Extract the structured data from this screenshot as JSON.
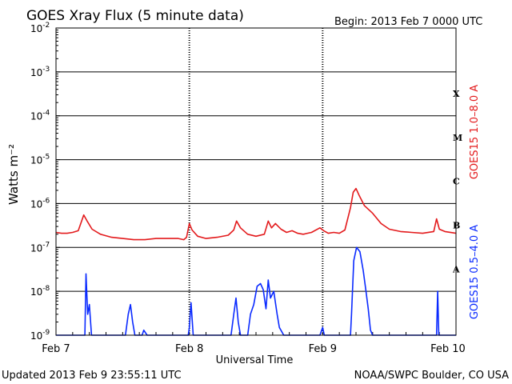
{
  "header": {
    "title": "GOES Xray Flux (5 minute data)",
    "begin": "Begin:  2013 Feb 7 0000 UTC"
  },
  "footer": {
    "updated": "Updated 2013 Feb  9 23:55:11 UTC",
    "credit": "NOAA/SWPC Boulder, CO USA"
  },
  "chart_data": {
    "type": "line",
    "title": "GOES Xray Flux (5 minute data)",
    "xlabel": "Universal Time",
    "ylabel": "Watts m⁻²",
    "yscale": "log",
    "ylim": [
      1e-09,
      0.01
    ],
    "xlim": [
      0,
      72
    ],
    "x_unit": "hours since 2013 Feb 7 0000 UTC",
    "x_ticks": [
      {
        "label": "Feb 7",
        "x": 0
      },
      {
        "label": "Feb 8",
        "x": 24
      },
      {
        "label": "Feb 9",
        "x": 48
      },
      {
        "label": "Feb 10",
        "x": 72
      }
    ],
    "y_ticks": [
      {
        "base": "10",
        "exp": "-2"
      },
      {
        "base": "10",
        "exp": "-3"
      },
      {
        "base": "10",
        "exp": "-4"
      },
      {
        "base": "10",
        "exp": "-5"
      },
      {
        "base": "10",
        "exp": "-6"
      },
      {
        "base": "10",
        "exp": "-7"
      },
      {
        "base": "10",
        "exp": "-8"
      },
      {
        "base": "10",
        "exp": "-9"
      }
    ],
    "flare_classes": [
      {
        "label": "X",
        "flux": 0.00032
      },
      {
        "label": "M",
        "flux": 3.2e-05
      },
      {
        "label": "C",
        "flux": 3.2e-06
      },
      {
        "label": "B",
        "flux": 3.2e-07
      },
      {
        "label": "A",
        "flux": 3.2e-08
      }
    ],
    "grid": true,
    "series": [
      {
        "name": "GOES15 1.0–8.0 A",
        "color": "#e31a1c",
        "points": [
          [
            0,
            2.2e-07
          ],
          [
            1,
            2.1e-07
          ],
          [
            2,
            2.1e-07
          ],
          [
            3,
            2.2e-07
          ],
          [
            4,
            2.4e-07
          ],
          [
            5,
            5.5e-07
          ],
          [
            5.6,
            4e-07
          ],
          [
            6.5,
            2.6e-07
          ],
          [
            8,
            2e-07
          ],
          [
            10,
            1.7e-07
          ],
          [
            12,
            1.6e-07
          ],
          [
            14,
            1.5e-07
          ],
          [
            16,
            1.5e-07
          ],
          [
            18,
            1.6e-07
          ],
          [
            20,
            1.6e-07
          ],
          [
            22,
            1.6e-07
          ],
          [
            23,
            1.5e-07
          ],
          [
            23.5,
            1.7e-07
          ],
          [
            24,
            3.5e-07
          ],
          [
            24.5,
            2.5e-07
          ],
          [
            25.5,
            1.8e-07
          ],
          [
            27,
            1.6e-07
          ],
          [
            29,
            1.7e-07
          ],
          [
            31,
            1.9e-07
          ],
          [
            32,
            2.5e-07
          ],
          [
            32.5,
            4e-07
          ],
          [
            33.2,
            2.8e-07
          ],
          [
            34.5,
            2e-07
          ],
          [
            36,
            1.8e-07
          ],
          [
            37.5,
            2e-07
          ],
          [
            38.2,
            4e-07
          ],
          [
            38.8,
            2.8e-07
          ],
          [
            39.5,
            3.5e-07
          ],
          [
            40.5,
            2.6e-07
          ],
          [
            41.5,
            2.2e-07
          ],
          [
            42.5,
            2.4e-07
          ],
          [
            43.5,
            2.1e-07
          ],
          [
            44.5,
            2e-07
          ],
          [
            46,
            2.2e-07
          ],
          [
            47.5,
            2.8e-07
          ],
          [
            48.2,
            2.4e-07
          ],
          [
            49,
            2.1e-07
          ],
          [
            50,
            2.2e-07
          ],
          [
            51,
            2.1e-07
          ],
          [
            52,
            2.5e-07
          ],
          [
            53,
            8e-07
          ],
          [
            53.5,
            1.8e-06
          ],
          [
            54,
            2.2e-06
          ],
          [
            54.6,
            1.5e-06
          ],
          [
            55.5,
            9e-07
          ],
          [
            57,
            6e-07
          ],
          [
            58.5,
            3.5e-07
          ],
          [
            60,
            2.6e-07
          ],
          [
            62,
            2.3e-07
          ],
          [
            64,
            2.2e-07
          ],
          [
            66,
            2.1e-07
          ],
          [
            68,
            2.3e-07
          ],
          [
            68.5,
            4.5e-07
          ],
          [
            69,
            2.6e-07
          ],
          [
            70,
            2.3e-07
          ],
          [
            72,
            2.1e-07
          ]
        ]
      },
      {
        "name": "GOES15 0.5–4.0 A",
        "color": "#0a2aff",
        "points": [
          [
            0,
            1e-09
          ],
          [
            5.2,
            1e-09
          ],
          [
            5.4,
            2.5e-08
          ],
          [
            5.7,
            3e-09
          ],
          [
            6,
            5e-09
          ],
          [
            6.4,
            1e-09
          ],
          [
            12.5,
            1e-09
          ],
          [
            13,
            3e-09
          ],
          [
            13.4,
            5e-09
          ],
          [
            13.8,
            2e-09
          ],
          [
            14.2,
            1e-09
          ],
          [
            15.5,
            1e-09
          ],
          [
            15.8,
            1.3e-09
          ],
          [
            16.4,
            1e-09
          ],
          [
            23.8,
            1e-09
          ],
          [
            24,
            1.5e-09
          ],
          [
            24.3,
            5.5e-09
          ],
          [
            24.7,
            1e-09
          ],
          [
            31.5,
            1e-09
          ],
          [
            32,
            3e-09
          ],
          [
            32.4,
            7e-09
          ],
          [
            32.8,
            2e-09
          ],
          [
            33.2,
            1e-09
          ],
          [
            34.5,
            1e-09
          ],
          [
            35,
            3e-09
          ],
          [
            35.6,
            5e-09
          ],
          [
            36.2,
            1.3e-08
          ],
          [
            36.8,
            1.5e-08
          ],
          [
            37.3,
            1.1e-08
          ],
          [
            37.8,
            4e-09
          ],
          [
            38.2,
            1.8e-08
          ],
          [
            38.6,
            7e-09
          ],
          [
            39.2,
            1e-08
          ],
          [
            39.8,
            3e-09
          ],
          [
            40.2,
            1.5e-09
          ],
          [
            41,
            1e-09
          ],
          [
            47.5,
            1e-09
          ],
          [
            48,
            1.5e-09
          ],
          [
            48.3,
            1e-09
          ],
          [
            53,
            1e-09
          ],
          [
            53.2,
            3e-09
          ],
          [
            53.6,
            5e-08
          ],
          [
            54.1,
            1e-07
          ],
          [
            54.7,
            8e-08
          ],
          [
            55.3,
            3e-08
          ],
          [
            55.8,
            1e-08
          ],
          [
            56.2,
            4e-09
          ],
          [
            56.6,
            1.3e-09
          ],
          [
            57,
            1e-09
          ],
          [
            68.5,
            1e-09
          ],
          [
            68.7,
            1e-08
          ],
          [
            68.9,
            1e-09
          ],
          [
            72,
            1e-09
          ]
        ]
      }
    ]
  }
}
